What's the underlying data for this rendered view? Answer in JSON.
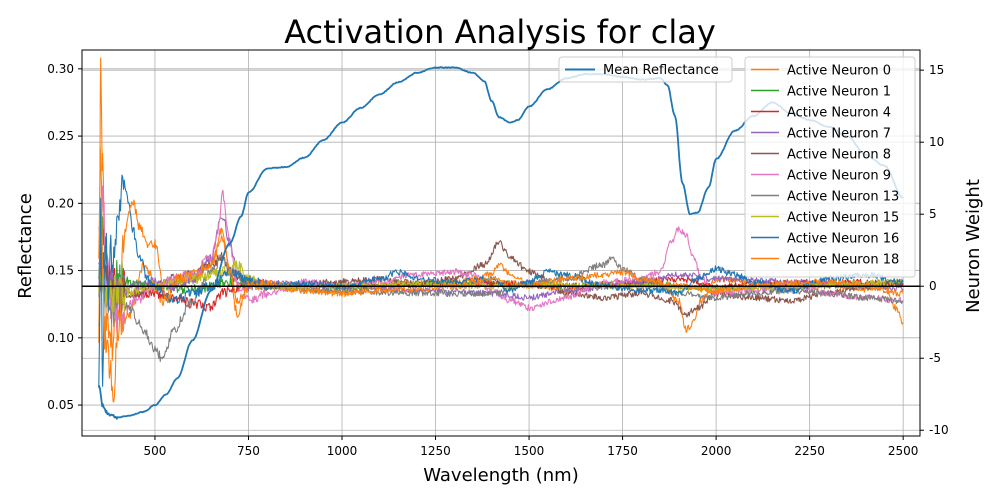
{
  "chart_data": {
    "type": "line",
    "title": "Activation Analysis for clay",
    "xlabel": "Wavelength (nm)",
    "ylabel_left": "Reflectance",
    "ylabel_right": "Neuron Weight",
    "xlim": [
      305,
      2545
    ],
    "ylim_left": [
      0.027,
      0.314
    ],
    "ylim_right": [
      -10.4,
      16.4
    ],
    "x_ticks": [
      500,
      750,
      1000,
      1250,
      1500,
      1750,
      2000,
      2250,
      2500
    ],
    "y_left_ticks": [
      0.05,
      0.1,
      0.15,
      0.2,
      0.25,
      0.3
    ],
    "y_left_tick_labels": [
      "0.05",
      "0.10",
      "0.15",
      "0.20",
      "0.25",
      "0.30"
    ],
    "y_right_ticks": [
      -10,
      -5,
      0,
      5,
      10,
      15
    ],
    "grid": true,
    "zero_line_right": 0,
    "legend_left": {
      "placement": "top-center",
      "entries": [
        "Mean Reflectance"
      ]
    },
    "legend_right": {
      "placement": "top-right",
      "entries": [
        "Active Neuron 0",
        "Active Neuron 1",
        "Active Neuron 4",
        "Active Neuron 7",
        "Active Neuron 8",
        "Active Neuron 9",
        "Active Neuron 13",
        "Active Neuron 15",
        "Active Neuron 16",
        "Active Neuron 18"
      ]
    },
    "mean_reflectance": {
      "name": "Mean Reflectance",
      "color": "#1f77b4",
      "x": [
        350,
        360,
        370,
        380,
        400,
        430,
        470,
        500,
        530,
        560,
        600,
        650,
        700,
        730,
        750,
        800,
        850,
        900,
        950,
        1000,
        1050,
        1100,
        1150,
        1200,
        1250,
        1300,
        1350,
        1380,
        1400,
        1420,
        1450,
        1470,
        1500,
        1550,
        1600,
        1650,
        1700,
        1750,
        1800,
        1850,
        1870,
        1890,
        1910,
        1930,
        1950,
        1980,
        2000,
        2050,
        2100,
        2150,
        2200,
        2250,
        2300,
        2350,
        2400,
        2450,
        2500
      ],
      "y": [
        0.064,
        0.05,
        0.045,
        0.043,
        0.041,
        0.042,
        0.045,
        0.05,
        0.058,
        0.07,
        0.098,
        0.135,
        0.17,
        0.19,
        0.208,
        0.226,
        0.227,
        0.234,
        0.247,
        0.26,
        0.271,
        0.281,
        0.29,
        0.297,
        0.301,
        0.301,
        0.297,
        0.291,
        0.276,
        0.264,
        0.26,
        0.262,
        0.272,
        0.285,
        0.293,
        0.296,
        0.296,
        0.294,
        0.292,
        0.293,
        0.288,
        0.265,
        0.215,
        0.192,
        0.193,
        0.212,
        0.233,
        0.254,
        0.265,
        0.275,
        0.267,
        0.262,
        0.257,
        0.25,
        0.236,
        0.228,
        0.204
      ]
    },
    "neurons": [
      {
        "name": "Active Neuron 0",
        "color": "#ff7f0e",
        "x": [
          350,
          355,
          360,
          365,
          370,
          380,
          400,
          430,
          470,
          520,
          560,
          600,
          650,
          680,
          700,
          720,
          740,
          760,
          800,
          900,
          1000,
          1100,
          1200,
          1300,
          1400,
          1420,
          1440,
          1500,
          1600,
          1700,
          1800,
          1850,
          1900,
          1920,
          1940,
          1960,
          2000,
          2100,
          2200,
          2300,
          2400,
          2450,
          2480,
          2500
        ],
        "y": [
          -3,
          14.5,
          8,
          3,
          -2,
          -4,
          -3,
          -2,
          1.5,
          -1,
          0.5,
          0.5,
          1.5,
          3.5,
          1,
          -2,
          -0.5,
          0.3,
          0,
          -0.3,
          -0.5,
          0,
          0.2,
          0.3,
          0.8,
          1.5,
          1,
          0.2,
          -0.3,
          0.2,
          0,
          0.2,
          -1,
          -3,
          -2.5,
          -1,
          0.5,
          0.3,
          0.2,
          0,
          -0.2,
          0,
          -1.5,
          -2.5
        ]
      },
      {
        "name": "Active Neuron 1",
        "color": "#2ca02c",
        "x": [
          350,
          360,
          370,
          380,
          400,
          450,
          500,
          600,
          700,
          800,
          1000,
          1200,
          1400,
          1600,
          1800,
          2000,
          2200,
          2400,
          2500
        ],
        "y": [
          1.5,
          4,
          2,
          1,
          0.5,
          0.2,
          0,
          -0.2,
          0.3,
          0,
          -0.1,
          0.1,
          0.2,
          0,
          0.1,
          -0.1,
          0,
          0.1,
          0.2
        ]
      },
      {
        "name": "Active Neuron 4",
        "color": "#d62728",
        "x": [
          350,
          360,
          370,
          380,
          400,
          450,
          500,
          550,
          600,
          650,
          680,
          700,
          750,
          800,
          1000,
          1200,
          1400,
          1600,
          1800,
          1900,
          2000,
          2200,
          2400,
          2500
        ],
        "y": [
          0.8,
          2,
          1,
          0.5,
          0,
          -0.5,
          -0.5,
          -0.8,
          -1.2,
          -1.5,
          -0.5,
          -0.3,
          0.2,
          0.1,
          0,
          0.1,
          0.2,
          0,
          0.3,
          0.5,
          0,
          0.2,
          0.3,
          0.2
        ]
      },
      {
        "name": "Active Neuron 7",
        "color": "#9467bd",
        "x": [
          350,
          360,
          370,
          380,
          400,
          450,
          500,
          550,
          600,
          650,
          680,
          700,
          720,
          750,
          800,
          1000,
          1200,
          1400,
          1500,
          1600,
          1800,
          1900,
          2000,
          2200,
          2400,
          2500
        ],
        "y": [
          0.5,
          1.5,
          0.5,
          0,
          -0.5,
          0,
          0.3,
          0,
          0.5,
          2,
          5,
          3,
          1,
          0,
          0.2,
          0,
          -0.3,
          -0.5,
          -0.8,
          -0.3,
          0.3,
          0.8,
          0.5,
          0.3,
          0,
          -0.2
        ]
      },
      {
        "name": "Active Neuron 8",
        "color": "#8c564b",
        "x": [
          350,
          360,
          370,
          380,
          400,
          450,
          500,
          550,
          600,
          650,
          680,
          700,
          750,
          800,
          1000,
          1100,
          1200,
          1300,
          1380,
          1420,
          1450,
          1500,
          1600,
          1700,
          1800,
          1880,
          1920,
          1950,
          2000,
          2100,
          2200,
          2300,
          2400,
          2500
        ],
        "y": [
          0.5,
          2,
          1,
          -0.5,
          -1,
          -0.5,
          0,
          0.5,
          0.8,
          1.5,
          2,
          1,
          0.3,
          0,
          0.3,
          0.5,
          0.2,
          0.5,
          1.5,
          3,
          2,
          1,
          -0.5,
          -0.8,
          -0.5,
          -1,
          -2,
          -1.5,
          -0.5,
          -0.8,
          -1,
          -0.5,
          0,
          0.3
        ]
      },
      {
        "name": "Active Neuron 9",
        "color": "#e377c2",
        "x": [
          350,
          360,
          370,
          380,
          400,
          450,
          500,
          550,
          600,
          650,
          670,
          680,
          700,
          720,
          760,
          800,
          900,
          1000,
          1100,
          1200,
          1300,
          1350,
          1400,
          1450,
          1500,
          1600,
          1700,
          1800,
          1850,
          1880,
          1900,
          1920,
          1940,
          1960,
          2000,
          2100,
          2200,
          2300,
          2400,
          2500
        ],
        "y": [
          3,
          6,
          2,
          -1,
          -2,
          -1,
          0,
          0.5,
          0.8,
          2,
          4,
          6.5,
          3,
          0,
          -1,
          -0.5,
          0.3,
          0,
          0.3,
          0.8,
          1,
          0.8,
          -0.3,
          -1,
          -1.5,
          -0.8,
          0.3,
          0.5,
          1,
          3,
          4,
          3.5,
          2,
          0.5,
          -0.5,
          -0.3,
          0,
          -0.5,
          -0.8,
          -1
        ]
      },
      {
        "name": "Active Neuron 13",
        "color": "#7f7f7f",
        "x": [
          350,
          360,
          370,
          380,
          400,
          430,
          470,
          500,
          520,
          550,
          600,
          650,
          680,
          700,
          750,
          800,
          1000,
          1200,
          1400,
          1500,
          1600,
          1700,
          1720,
          1750,
          1800,
          1900,
          2000,
          2100,
          2200,
          2300,
          2400,
          2500
        ],
        "y": [
          -2,
          1,
          -1,
          -2,
          -1,
          -1.5,
          -3,
          -4.5,
          -5,
          -3,
          -1,
          1,
          2,
          1,
          0.2,
          0,
          -0.3,
          -0.5,
          -0.5,
          0.2,
          0.5,
          1.5,
          2,
          1.2,
          0.5,
          -0.5,
          -0.8,
          -0.5,
          -0.3,
          -0.5,
          -0.8,
          -1
        ]
      },
      {
        "name": "Active Neuron 15",
        "color": "#bcbd22",
        "x": [
          350,
          360,
          370,
          380,
          400,
          450,
          500,
          550,
          600,
          650,
          700,
          720,
          750,
          800,
          1000,
          1200,
          1400,
          1600,
          1800,
          2000,
          2200,
          2400,
          2500
        ],
        "y": [
          -0.5,
          1,
          -0.5,
          -0.8,
          -0.5,
          -0.3,
          0,
          0.3,
          0.5,
          0.8,
          1.2,
          1.5,
          0.5,
          0,
          0,
          0.2,
          0,
          0.1,
          0,
          -0.2,
          0,
          0.2,
          0.3
        ]
      },
      {
        "name": "Active Neuron 16",
        "color": "#1f77b4",
        "x": [
          350,
          355,
          360,
          365,
          370,
          375,
          380,
          390,
          400,
          410,
          420,
          430,
          440,
          460,
          480,
          500,
          550,
          600,
          650,
          700,
          750,
          800,
          900,
          1000,
          1100,
          1150,
          1200,
          1300,
          1400,
          1450,
          1500,
          1550,
          1600,
          1700,
          1800,
          1850,
          1900,
          1950,
          2000,
          2050,
          2100,
          2200,
          2300,
          2400,
          2500
        ],
        "y": [
          -8,
          5,
          -6,
          0,
          4,
          -2,
          3,
          2,
          5,
          6.5,
          7,
          6,
          4,
          2,
          0.5,
          0,
          -1,
          -0.5,
          0,
          1,
          0.5,
          0,
          0.2,
          0,
          0.5,
          1,
          0.5,
          0.3,
          0.5,
          -0.3,
          0.3,
          1,
          0.8,
          0,
          -0.3,
          -0.3,
          -0.5,
          0.5,
          1.2,
          0.8,
          0.3,
          -0.3,
          0.5,
          0.8,
          0.3
        ]
      },
      {
        "name": "Active Neuron 18",
        "color": "#ff7f0e",
        "x": [
          350,
          355,
          360,
          365,
          370,
          380,
          390,
          400,
          420,
          440,
          460,
          480,
          500,
          530,
          560,
          600,
          650,
          680,
          700,
          720,
          750,
          800,
          900,
          1000,
          1100,
          1200,
          1300,
          1400,
          1450,
          1500,
          1550,
          1600,
          1700,
          1750,
          1800,
          1900,
          2000,
          2100,
          2200,
          2300,
          2400,
          2500
        ],
        "y": [
          3,
          10,
          2,
          -3,
          -4,
          -6,
          -7,
          -3,
          4,
          6,
          4,
          3,
          3,
          -1,
          0.5,
          0.8,
          1.5,
          4,
          1,
          -1,
          0,
          0.2,
          -0.3,
          -0.5,
          -0.3,
          -0.2,
          0,
          0.5,
          0.2,
          0,
          0.3,
          0.5,
          0.8,
          1,
          0.5,
          0,
          -0.3,
          0,
          0.2,
          0.3,
          0,
          -0.5
        ]
      }
    ]
  }
}
